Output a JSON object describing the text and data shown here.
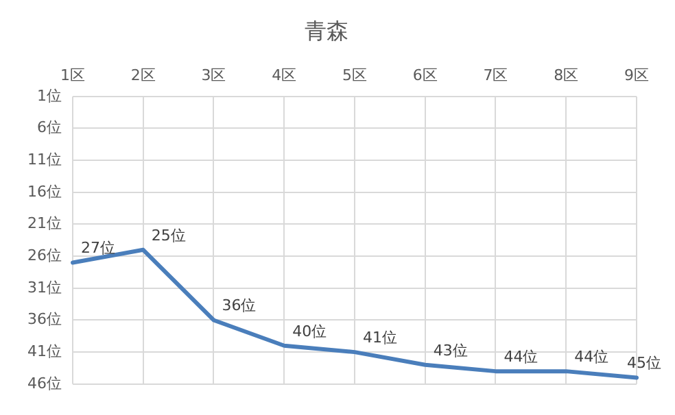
{
  "chart_data": {
    "type": "line",
    "title": "青森",
    "categories": [
      "1区",
      "2区",
      "3区",
      "4区",
      "5区",
      "6区",
      "7区",
      "8区",
      "9区"
    ],
    "series": [
      {
        "color": "#4a7ebb",
        "values": [
          27,
          25,
          36,
          40,
          41,
          43,
          44,
          44,
          45
        ],
        "value_labels": [
          "27位",
          "25位",
          "36位",
          "40位",
          "41位",
          "43位",
          "44位",
          "44位",
          "45位"
        ]
      }
    ],
    "ylim": [
      46,
      1
    ],
    "yticks": [
      {
        "value": 1,
        "label": "1位"
      },
      {
        "value": 6,
        "label": "6位"
      },
      {
        "value": 11,
        "label": "11位"
      },
      {
        "value": 16,
        "label": "16位"
      },
      {
        "value": 21,
        "label": "21位"
      },
      {
        "value": 26,
        "label": "26位"
      },
      {
        "value": 31,
        "label": "31位"
      },
      {
        "value": 36,
        "label": "36位"
      },
      {
        "value": 41,
        "label": "41位"
      },
      {
        "value": 46,
        "label": "46位"
      }
    ],
    "grid": true,
    "legend": false,
    "marker": "none",
    "line_style": "solid"
  }
}
